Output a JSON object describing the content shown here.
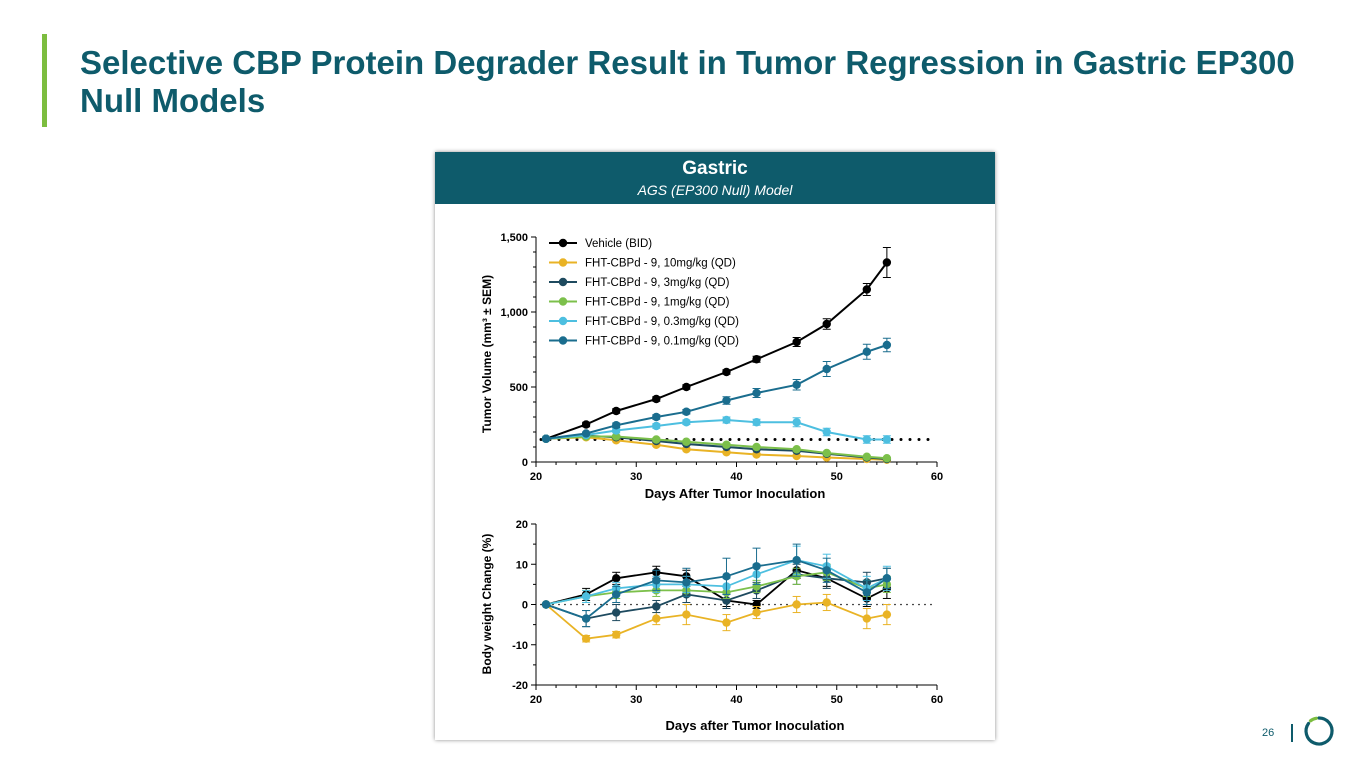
{
  "slide": {
    "title": "Selective CBP Protein Degrader Result in Tumor Regression in Gastric EP300 Null Models",
    "page_number": "26",
    "colors": {
      "title": "#0e5b6b",
      "accent": "#7cbd3f"
    }
  },
  "panel": {
    "title": "Gastric",
    "subtitle": "AGS (EP300 Null) Model",
    "header_color": "#0e5b6b"
  },
  "chart_data": [
    {
      "type": "line",
      "xlabel": "Days After Tumor Inoculation",
      "ylabel": "Tumor Volume (mm³ ± SEM)",
      "xlim": [
        20,
        60
      ],
      "ylim": [
        0,
        1500
      ],
      "xticks": [
        "20",
        "30",
        "40",
        "50",
        "60"
      ],
      "yticks": [
        "0",
        "500",
        "1,000",
        "1,500"
      ],
      "legend_position": "top-left",
      "reference_line": {
        "y": 150,
        "style": "dotted"
      },
      "series": [
        {
          "name": "Vehicle (BID)",
          "color": "#000000",
          "x": [
            21,
            25,
            28,
            32,
            35,
            39,
            42,
            46,
            49,
            53,
            55
          ],
          "y": [
            155,
            250,
            340,
            420,
            500,
            600,
            685,
            800,
            920,
            1150,
            1330
          ],
          "err": [
            10,
            15,
            15,
            15,
            15,
            15,
            20,
            30,
            35,
            40,
            100
          ]
        },
        {
          "name": "FHT-CBPd - 9, 10mg/kg (QD)",
          "color": "#e9b325",
          "x": [
            21,
            25,
            28,
            32,
            35,
            39,
            42,
            46,
            49,
            53,
            55
          ],
          "y": [
            155,
            165,
            145,
            115,
            85,
            65,
            50,
            40,
            30,
            20,
            15
          ],
          "err": [
            8,
            10,
            10,
            10,
            10,
            8,
            8,
            6,
            6,
            5,
            5
          ]
        },
        {
          "name": "FHT-CBPd - 9, 3mg/kg (QD)",
          "color": "#1e4a5f",
          "x": [
            21,
            25,
            28,
            32,
            35,
            39,
            42,
            46,
            49,
            53,
            55
          ],
          "y": [
            155,
            175,
            165,
            140,
            120,
            100,
            85,
            75,
            55,
            30,
            20
          ],
          "err": [
            8,
            10,
            10,
            10,
            10,
            10,
            8,
            8,
            6,
            5,
            5
          ]
        },
        {
          "name": "FHT-CBPd - 9, 1mg/kg (QD)",
          "color": "#7cc04b",
          "x": [
            21,
            25,
            28,
            32,
            35,
            39,
            42,
            46,
            49,
            53,
            55
          ],
          "y": [
            155,
            170,
            170,
            150,
            135,
            115,
            100,
            85,
            60,
            35,
            25
          ],
          "err": [
            8,
            10,
            10,
            10,
            10,
            10,
            8,
            8,
            6,
            5,
            5
          ]
        },
        {
          "name": "FHT-CBPd - 9, 0.3mg/kg (QD)",
          "color": "#4dbfe0",
          "x": [
            21,
            25,
            28,
            32,
            35,
            39,
            42,
            46,
            49,
            53,
            55
          ],
          "y": [
            155,
            180,
            210,
            240,
            265,
            280,
            265,
            265,
            200,
            150,
            150
          ],
          "err": [
            8,
            10,
            15,
            15,
            15,
            20,
            20,
            30,
            25,
            25,
            25
          ]
        },
        {
          "name": "FHT-CBPd - 9, 0.1mg/kg (QD)",
          "color": "#1a6d8e",
          "x": [
            21,
            25,
            28,
            32,
            35,
            39,
            42,
            46,
            49,
            53,
            55
          ],
          "y": [
            155,
            190,
            245,
            300,
            335,
            410,
            460,
            515,
            620,
            735,
            780
          ],
          "err": [
            8,
            10,
            15,
            15,
            15,
            25,
            30,
            35,
            50,
            50,
            45
          ]
        }
      ]
    },
    {
      "type": "line",
      "xlabel": "Days after Tumor Inoculation",
      "ylabel": "Body weight Change (%)",
      "xlim": [
        20,
        60
      ],
      "ylim": [
        -20,
        20
      ],
      "xticks": [
        "20",
        "30",
        "40",
        "50",
        "60"
      ],
      "yticks": [
        "-20",
        "-10",
        "0",
        "10",
        "20"
      ],
      "reference_line": {
        "y": 0,
        "style": "dotted"
      },
      "series": [
        {
          "name": "Vehicle (BID)",
          "color": "#000000",
          "x": [
            21,
            25,
            28,
            32,
            35,
            39,
            42,
            46,
            49,
            53,
            55
          ],
          "y": [
            0,
            2.5,
            6.5,
            8,
            7,
            1,
            0,
            8.5,
            6.5,
            1.5,
            4
          ],
          "err": [
            0,
            1.5,
            1.5,
            1.5,
            1.5,
            1.5,
            1,
            2,
            2,
            2,
            2.5
          ]
        },
        {
          "name": "FHT-CBPd - 9, 10mg/kg (QD)",
          "color": "#e9b325",
          "x": [
            21,
            25,
            28,
            32,
            35,
            39,
            42,
            46,
            49,
            53,
            55
          ],
          "y": [
            0,
            -8.5,
            -7.5,
            -3.5,
            -2.5,
            -4.5,
            -2,
            0,
            0.5,
            -3.5,
            -2.5
          ],
          "err": [
            0,
            0.8,
            0.8,
            1.5,
            2.5,
            2,
            1.5,
            2,
            2,
            2.5,
            2.5
          ]
        },
        {
          "name": "FHT-CBPd - 9, 3mg/kg (QD)",
          "color": "#1e4a5f",
          "x": [
            21,
            25,
            28,
            32,
            35,
            39,
            42,
            46,
            49,
            53,
            55
          ],
          "y": [
            0,
            -3.5,
            -2,
            -0.5,
            2.5,
            1,
            3.5,
            7.5,
            6.5,
            5.5,
            6.5
          ],
          "err": [
            0,
            2,
            2,
            1.5,
            2,
            2,
            2,
            2.5,
            2.5,
            2.5,
            2.5
          ]
        },
        {
          "name": "FHT-CBPd - 9, 1mg/kg (QD)",
          "color": "#7cc04b",
          "x": [
            21,
            25,
            28,
            32,
            35,
            39,
            42,
            46,
            49,
            53,
            55
          ],
          "y": [
            0,
            2,
            3,
            3.5,
            3.5,
            3,
            4.5,
            7,
            8,
            4,
            5
          ],
          "err": [
            0,
            1.5,
            1.5,
            1.5,
            1.5,
            1.5,
            1.5,
            2,
            2,
            2,
            2
          ]
        },
        {
          "name": "FHT-CBPd - 9, 0.3mg/kg (QD)",
          "color": "#4dbfe0",
          "x": [
            21,
            25,
            28,
            32,
            35,
            39,
            42,
            46,
            49,
            53,
            55
          ],
          "y": [
            0,
            2,
            4,
            5,
            5,
            4.5,
            7.5,
            11,
            9.5,
            4,
            6.5
          ],
          "err": [
            0,
            1.5,
            1.5,
            2,
            2,
            2,
            2.5,
            3.5,
            3,
            3,
            3
          ]
        },
        {
          "name": "FHT-CBPd - 9, 0.1mg/kg (QD)",
          "color": "#1a6d8e",
          "x": [
            21,
            25,
            28,
            32,
            35,
            39,
            42,
            46,
            49,
            53,
            55
          ],
          "y": [
            0,
            -3.5,
            2.5,
            6,
            5.5,
            7,
            9.5,
            11,
            8.5,
            3,
            6.5
          ],
          "err": [
            0,
            2,
            2,
            2.5,
            3.5,
            4.5,
            4.5,
            4,
            3,
            3,
            2.5
          ]
        }
      ]
    }
  ]
}
